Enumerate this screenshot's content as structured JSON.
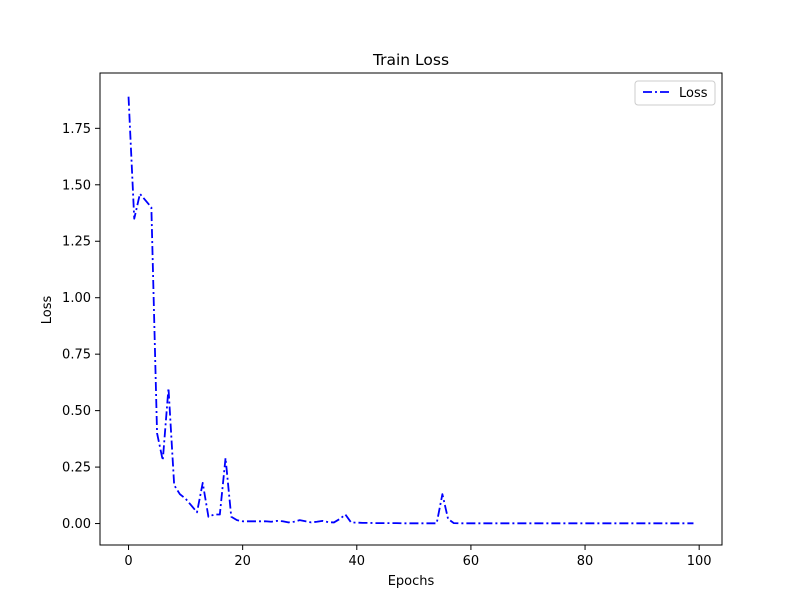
{
  "chart_data": {
    "type": "line",
    "title": "Train Loss",
    "xlabel": "Epochs",
    "ylabel": "Loss",
    "xlim": [
      -5,
      104
    ],
    "ylim": [
      -0.095,
      1.995
    ],
    "xticks": [
      0,
      20,
      40,
      60,
      80,
      100
    ],
    "yticks": [
      0.0,
      0.25,
      0.5,
      0.75,
      1.0,
      1.25,
      1.5,
      1.75
    ],
    "ytick_labels": [
      "0.00",
      "0.25",
      "0.50",
      "0.75",
      "1.00",
      "1.25",
      "1.50",
      "1.75"
    ],
    "grid": false,
    "legend_position": "top-right",
    "series": [
      {
        "name": "Loss",
        "color": "#0000ff",
        "line_style": "dash-dot",
        "x": [
          0,
          1,
          2,
          3,
          4,
          5,
          6,
          7,
          8,
          9,
          10,
          11,
          12,
          13,
          14,
          15,
          16,
          17,
          18,
          19,
          20,
          21,
          22,
          23,
          24,
          25,
          26,
          27,
          28,
          29,
          30,
          31,
          32,
          33,
          34,
          35,
          36,
          37,
          38,
          39,
          40,
          41,
          42,
          43,
          44,
          45,
          46,
          47,
          48,
          49,
          50,
          51,
          52,
          53,
          54,
          55,
          56,
          57,
          58,
          59,
          60,
          61,
          62,
          63,
          64,
          65,
          66,
          67,
          68,
          69,
          70,
          71,
          72,
          73,
          74,
          75,
          76,
          77,
          78,
          79,
          80,
          81,
          82,
          83,
          84,
          85,
          86,
          87,
          88,
          89,
          90,
          91,
          92,
          93,
          94,
          95,
          96,
          97,
          98,
          99
        ],
        "y": [
          1.89,
          1.35,
          1.46,
          1.43,
          1.4,
          0.4,
          0.28,
          0.6,
          0.17,
          0.13,
          0.11,
          0.08,
          0.05,
          0.18,
          0.03,
          0.04,
          0.04,
          0.29,
          0.03,
          0.015,
          0.01,
          0.01,
          0.01,
          0.01,
          0.01,
          0.008,
          0.012,
          0.01,
          0.005,
          0.008,
          0.015,
          0.01,
          0.005,
          0.008,
          0.012,
          0.006,
          0.005,
          0.02,
          0.04,
          0.005,
          0.004,
          0.003,
          0.003,
          0.002,
          0.002,
          0.002,
          0.002,
          0.002,
          0.001,
          0.001,
          0.001,
          0.001,
          0.001,
          0.001,
          0.001,
          0.13,
          0.02,
          0.002,
          0.001,
          0.001,
          0.001,
          0.001,
          0.001,
          0.001,
          0.001,
          0.001,
          0.001,
          0.001,
          0.001,
          0.001,
          0.001,
          0.001,
          0.001,
          0.001,
          0.001,
          0.001,
          0.001,
          0.001,
          0.001,
          0.001,
          0.001,
          0.001,
          0.001,
          0.001,
          0.001,
          0.001,
          0.001,
          0.001,
          0.001,
          0.001,
          0.001,
          0.001,
          0.001,
          0.001,
          0.001,
          0.001,
          0.001,
          0.001,
          0.001,
          0.001
        ]
      }
    ]
  }
}
